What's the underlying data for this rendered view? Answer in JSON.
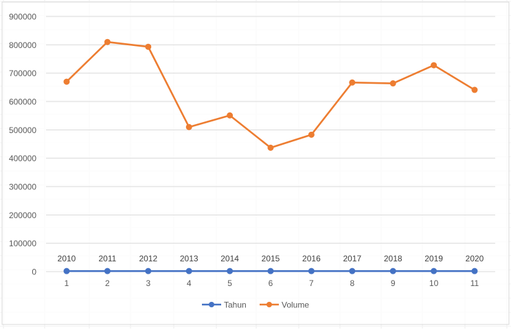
{
  "chart_data": {
    "type": "line",
    "title": "",
    "xlabel": "",
    "ylabel": "",
    "ylim": [
      0,
      900000
    ],
    "yticks": [
      "0",
      "100000",
      "200000",
      "300000",
      "400000",
      "500000",
      "600000",
      "700000",
      "800000",
      "900000"
    ],
    "categories": [
      "1",
      "2",
      "3",
      "4",
      "5",
      "6",
      "7",
      "8",
      "9",
      "10",
      "11"
    ],
    "data_labels": [
      "2010",
      "2011",
      "2012",
      "2013",
      "2014",
      "2015",
      "2016",
      "2017",
      "2018",
      "2019",
      "2020"
    ],
    "grid": true,
    "legend_position": "bottom",
    "series": [
      {
        "name": "Tahun",
        "color": "#4472C4",
        "values": [
          2010,
          2011,
          2012,
          2013,
          2014,
          2015,
          2016,
          2017,
          2018,
          2019,
          2020
        ]
      },
      {
        "name": "Volume",
        "color": "#ED7D31",
        "values": [
          670000,
          810000,
          793000,
          510000,
          551000,
          437000,
          483000,
          667000,
          664000,
          728000,
          641000
        ]
      }
    ]
  }
}
